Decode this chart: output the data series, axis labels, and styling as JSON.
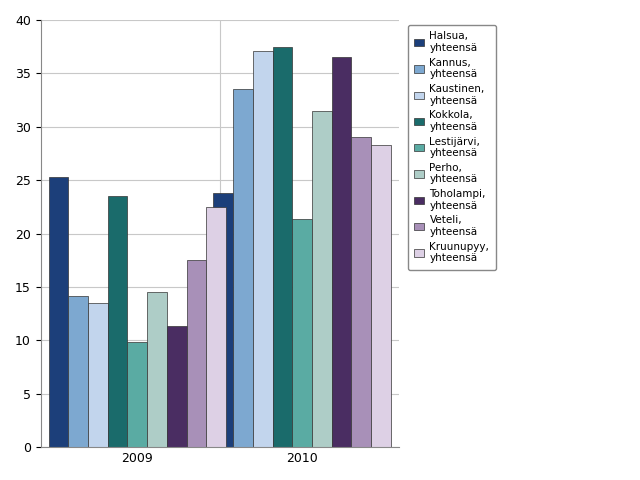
{
  "years": [
    "2009",
    "2010"
  ],
  "series": [
    {
      "label": "Halsua,\nyhteensä",
      "color": "#1c3f7a",
      "values": [
        25.3,
        23.8
      ]
    },
    {
      "label": "Kannus,\nyhteensä",
      "color": "#7da8d0",
      "values": [
        14.2,
        33.5
      ]
    },
    {
      "label": "Kaustinen,\nyhteensä",
      "color": "#c2d5ed",
      "values": [
        13.5,
        37.1
      ]
    },
    {
      "label": "Kokkola,\nyhteensä",
      "color": "#1a6b6b",
      "values": [
        23.5,
        37.5
      ]
    },
    {
      "label": "Lestijärvi,\nyhteensä",
      "color": "#5aaba3",
      "values": [
        9.8,
        21.4
      ]
    },
    {
      "label": "Perho,\nyhteensä",
      "color": "#aecdc7",
      "values": [
        14.5,
        31.5
      ]
    },
    {
      "label": "Toholampi,\nyhteensä",
      "color": "#4a2d62",
      "values": [
        11.3,
        36.5
      ]
    },
    {
      "label": "Veteli,\nyhteensä",
      "color": "#a890b8",
      "values": [
        17.5,
        29.0
      ]
    },
    {
      "label": "Kruunupyy,\nyhteensä",
      "color": "#ddd0e5",
      "values": [
        22.5,
        28.3
      ]
    }
  ],
  "ylim": [
    0,
    40
  ],
  "yticks": [
    0,
    5,
    10,
    15,
    20,
    25,
    30,
    35,
    40
  ],
  "grid_color": "#c8c8c8",
  "background_color": "#ffffff",
  "legend_fontsize": 7.5,
  "tick_fontsize": 9,
  "bar_width": 0.055,
  "group_centers": [
    0.27,
    0.73
  ],
  "edgecolor": "#333333"
}
